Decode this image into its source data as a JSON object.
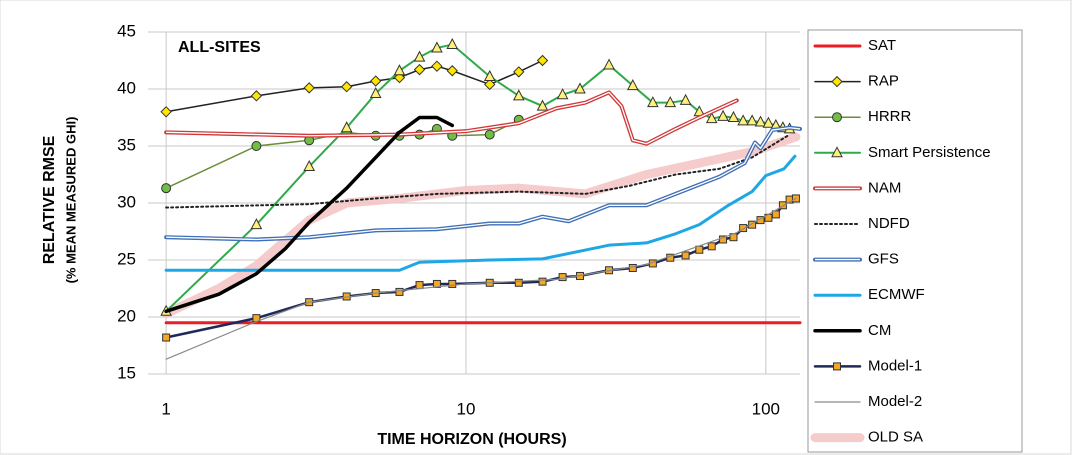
{
  "chart_data": {
    "type": "line",
    "annotation": "ALL-SITES",
    "x_label": "TIME HORIZON (HOURS)",
    "y_label": "RELATIVE RMSE",
    "y_label_sub": "(% MEAN MEASURED GHI)",
    "x_log": true,
    "xlim": [
      0.87,
      130
    ],
    "xticks": [
      1,
      10,
      100
    ],
    "ylim": [
      15,
      45
    ],
    "yticks": [
      15,
      20,
      25,
      30,
      35,
      40,
      45
    ],
    "grid": true,
    "legend": "right",
    "series": [
      {
        "name": "SAT",
        "color": "#ee1c25",
        "width": 3,
        "style": "solid",
        "x": [
          1,
          130
        ],
        "values": [
          19.5,
          19.5
        ]
      },
      {
        "name": "RAP",
        "color": "#222222",
        "width": 1.5,
        "style": "solid",
        "marker": "diamond",
        "marker_color": "#ffe600",
        "x": [
          1,
          2,
          3,
          4,
          5,
          6,
          7,
          8,
          9,
          12,
          15,
          18
        ],
        "values": [
          38,
          39.4,
          40.1,
          40.2,
          40.7,
          41,
          41.7,
          42,
          41.6,
          40.4,
          41.5,
          42.5
        ]
      },
      {
        "name": "HRRR",
        "color": "#6b8e3a",
        "width": 1.5,
        "style": "solid",
        "marker": "circle",
        "marker_color": "#70bf44",
        "x": [
          1,
          2,
          3,
          4,
          5,
          6,
          7,
          8,
          9,
          12,
          15
        ],
        "values": [
          31.3,
          35,
          35.5,
          36.2,
          35.9,
          35.9,
          36,
          36.5,
          35.9,
          36,
          37.3
        ]
      },
      {
        "name": "Smart Persistence",
        "color": "#2eaa4a",
        "width": 2,
        "style": "solid",
        "marker": "triangle",
        "marker_color": "#fff07a",
        "x": [
          1,
          2,
          3,
          4,
          5,
          6,
          7,
          8,
          9,
          12,
          15,
          18,
          21,
          24,
          30,
          36,
          42,
          48,
          54,
          60,
          66,
          72,
          78,
          84,
          90,
          96,
          102,
          108,
          114,
          120
        ],
        "values": [
          20.5,
          28.1,
          33.2,
          36.6,
          39.6,
          41.6,
          42.8,
          43.6,
          43.9,
          41.1,
          39.4,
          38.5,
          39.5,
          40,
          42.1,
          40.3,
          38.8,
          38.8,
          39,
          38,
          37.4,
          37.6,
          37.5,
          37.2,
          37.2,
          37.1,
          37,
          36.8,
          36.6,
          36.5
        ]
      },
      {
        "name": "NAM",
        "color": "#d0393a",
        "width": 4,
        "style": "double",
        "x": [
          1,
          3,
          6,
          10,
          15,
          20,
          25,
          30,
          33,
          36,
          40,
          50,
          60,
          80
        ],
        "values": [
          36.2,
          35.9,
          36,
          36.3,
          37,
          38.3,
          38.8,
          39.7,
          38.5,
          35.5,
          35.2,
          36.5,
          37.5,
          39
        ]
      },
      {
        "name": "NDFD",
        "color": "#222222",
        "width": 2,
        "style": "dotted",
        "x": [
          1,
          3,
          5,
          8,
          15,
          25,
          35,
          50,
          70,
          90,
          120
        ],
        "values": [
          29.6,
          29.9,
          30.4,
          30.8,
          31,
          30.8,
          31.5,
          32.5,
          33,
          34,
          36
        ]
      },
      {
        "name": "GFS",
        "color": "#3f6fb5",
        "width": 4,
        "style": "double",
        "x": [
          1,
          2,
          3,
          5,
          8,
          12,
          15,
          18,
          22,
          30,
          40,
          50,
          70,
          85,
          92,
          96,
          105,
          120,
          130
        ],
        "values": [
          27,
          26.8,
          27,
          27.6,
          27.7,
          28.2,
          28.2,
          28.8,
          28.4,
          29.8,
          29.8,
          30.8,
          32.3,
          33.5,
          35.3,
          34.8,
          36.4,
          36.6,
          36.5
        ]
      },
      {
        "name": "ECMWF",
        "color": "#1ea7e6",
        "width": 3,
        "style": "solid",
        "x": [
          1,
          3,
          6,
          7,
          12,
          18,
          30,
          40,
          50,
          60,
          75,
          90,
          100,
          115,
          125
        ],
        "values": [
          24.1,
          24.1,
          24.1,
          24.8,
          25,
          25.1,
          26.3,
          26.5,
          27.3,
          28.1,
          29.8,
          31,
          32.4,
          33,
          34.1
        ]
      },
      {
        "name": "CM",
        "color": "#000000",
        "width": 3.5,
        "style": "solid",
        "x": [
          1,
          1.5,
          2,
          2.5,
          3,
          4,
          5,
          6,
          7,
          8,
          9
        ],
        "values": [
          20.5,
          22,
          23.8,
          26,
          28.3,
          31.3,
          34,
          36.2,
          37.5,
          37.5,
          36.8
        ]
      },
      {
        "name": "Model-1",
        "color": "#1f2a5a",
        "width": 2.5,
        "style": "solid",
        "marker": "square",
        "marker_color": "#f5a623",
        "x": [
          1,
          2,
          3,
          4,
          5,
          6,
          7,
          8,
          9,
          12,
          15,
          18,
          21,
          24,
          30,
          36,
          42,
          48,
          54,
          60,
          66,
          72,
          78,
          84,
          90,
          96,
          102,
          108,
          114,
          120,
          126
        ],
        "values": [
          18.2,
          19.9,
          21.3,
          21.8,
          22.1,
          22.2,
          22.8,
          22.9,
          22.9,
          23,
          23,
          23.1,
          23.5,
          23.6,
          24.1,
          24.3,
          24.7,
          25.2,
          25.4,
          25.9,
          26.2,
          26.8,
          27,
          27.8,
          28.1,
          28.5,
          28.7,
          29,
          29.8,
          30.3,
          30.4
        ]
      },
      {
        "name": "Model-2",
        "color": "#8a8a8a",
        "width": 1.2,
        "style": "solid",
        "x": [
          1,
          2,
          3,
          5,
          10,
          20,
          40,
          80,
          126
        ],
        "values": [
          16.3,
          19.6,
          21.3,
          22.1,
          22.9,
          23.3,
          24.6,
          27.4,
          30.4
        ]
      },
      {
        "name": "OLD SA",
        "color": "#f4c5c6",
        "width": 9,
        "style": "band",
        "x": [
          1,
          1.5,
          2,
          3,
          4,
          6,
          10,
          15,
          25,
          40,
          60,
          90,
          126
        ],
        "values": [
          20.3,
          22.5,
          24.5,
          28.5,
          30,
          30.4,
          31.1,
          31.3,
          30.8,
          32.5,
          33.5,
          34.5,
          35.8
        ]
      }
    ]
  }
}
